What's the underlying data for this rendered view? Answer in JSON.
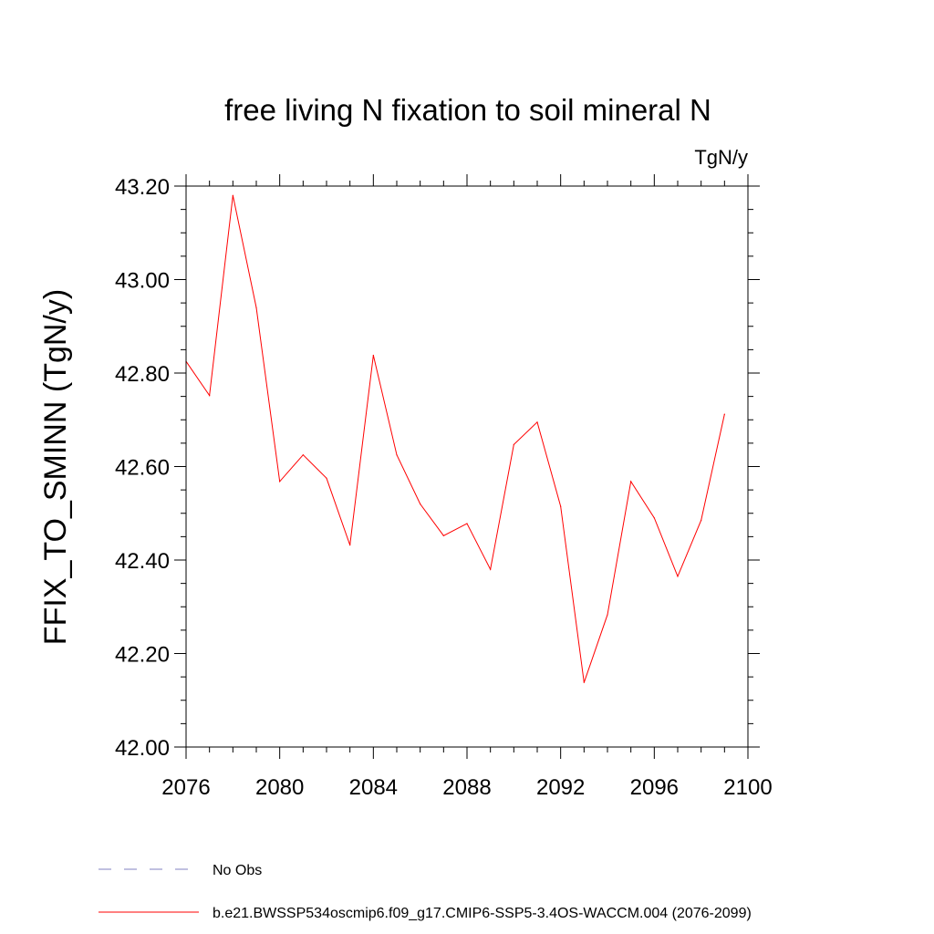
{
  "chart_data": {
    "type": "line",
    "title": "free living N fixation to soil mineral N",
    "units": "TgN/y",
    "ylabel": "FFIX_TO_SMINN  (TgN/y)",
    "xlabel": "",
    "xlim": [
      2076,
      2100
    ],
    "ylim": [
      42.0,
      43.2
    ],
    "x_ticks": [
      2076,
      2080,
      2084,
      2088,
      2092,
      2096,
      2100
    ],
    "x_tick_labels": [
      "2076",
      "2080",
      "2084",
      "2088",
      "2092",
      "2096",
      "2100"
    ],
    "y_ticks": [
      42.0,
      42.2,
      42.4,
      42.6,
      42.8,
      43.0,
      43.2
    ],
    "y_tick_labels": [
      "42.00",
      "42.20",
      "42.40",
      "42.60",
      "42.80",
      "43.00",
      "43.20"
    ],
    "grid": false,
    "legend_position": "bottom",
    "series": [
      {
        "name": "b.e21.BWSSP534oscmip6.f09_g17.CMIP6-SSP5-3.4OS-WACCM.004 (2076-2099)",
        "color": "#ff0000",
        "style": "solid",
        "x": [
          2076,
          2077,
          2078,
          2079,
          2080,
          2081,
          2082,
          2083,
          2084,
          2085,
          2086,
          2087,
          2088,
          2089,
          2090,
          2091,
          2092,
          2093,
          2094,
          2095,
          2096,
          2097,
          2098,
          2099
        ],
        "values": [
          42.825,
          42.752,
          43.18,
          42.94,
          42.568,
          42.625,
          42.575,
          42.432,
          42.838,
          42.625,
          42.52,
          42.452,
          42.478,
          42.38,
          42.647,
          42.695,
          42.515,
          42.138,
          42.283,
          42.568,
          42.49,
          42.365,
          42.485,
          42.712
        ]
      },
      {
        "name": "No Obs",
        "color": "#8080c0",
        "style": "dashed",
        "x": [],
        "values": []
      }
    ]
  }
}
